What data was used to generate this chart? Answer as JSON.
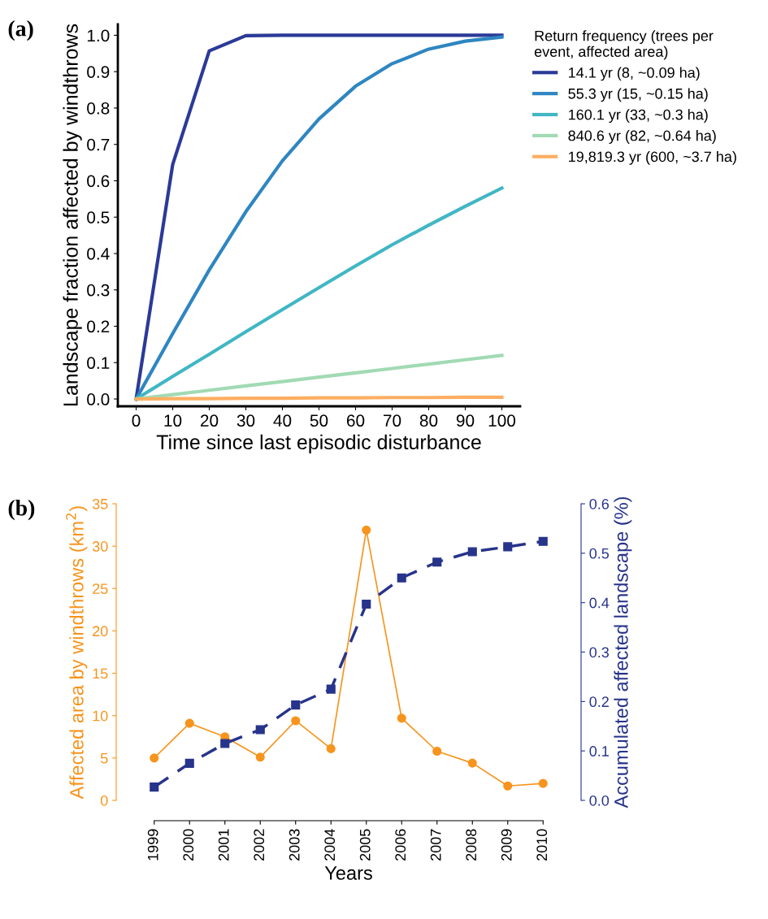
{
  "chart_data": [
    {
      "type": "line",
      "title": "(a)",
      "xlabel": "Time since last episodic disturbance",
      "ylabel": "Landscape fraction affected by windthrows",
      "legend_title": "Return frequency (trees per\nevent, affected area)",
      "legend": "right",
      "x": [
        0,
        10,
        20,
        30,
        40,
        50,
        60,
        70,
        80,
        90,
        100
      ],
      "xlim": [
        -5,
        105
      ],
      "xticks": [
        0,
        10,
        20,
        30,
        40,
        50,
        60,
        70,
        80,
        90,
        100
      ],
      "ylim": [
        -0.02,
        1.03
      ],
      "yticks": [
        {
          "value": 0,
          "label": "0.0"
        },
        0.1,
        0.2,
        0.3,
        0.4,
        0.5,
        0.6,
        0.7,
        0.8,
        0.9,
        {
          "value": 1,
          "label": "1.0"
        }
      ],
      "series": [
        {
          "name": "14.1 yr (8, ~0.09 ha)",
          "color": "#2b3a98",
          "values": [
            0,
            0.645,
            0.957,
            0.999,
            1,
            1,
            1,
            1,
            1,
            1,
            1
          ]
        },
        {
          "name": "55.3 yr (15, ~0.15 ha)",
          "color": "#2e86c1",
          "values": [
            0,
            0.18,
            0.355,
            0.515,
            0.655,
            0.77,
            0.86,
            0.922,
            0.962,
            0.984,
            0.995
          ]
        },
        {
          "name": "160.1 yr (33, ~0.3 ha)",
          "color": "#41b6c4",
          "values": [
            0,
            0.062,
            0.123,
            0.185,
            0.246,
            0.306,
            0.366,
            0.424,
            0.478,
            0.53,
            0.58
          ]
        },
        {
          "name": "840.6 yr (82, ~0.64 ha)",
          "color": "#a1dab4",
          "values": [
            0,
            0.012,
            0.024,
            0.036,
            0.048,
            0.06,
            0.072,
            0.084,
            0.096,
            0.108,
            0.12
          ]
        },
        {
          "name": "19,819.3 yr (600, ~3.7 ha)",
          "color": "#fdae61",
          "values": [
            0,
            0.001,
            0.001,
            0.002,
            0.002,
            0.003,
            0.003,
            0.004,
            0.004,
            0.005,
            0.005
          ]
        }
      ]
    },
    {
      "type": "line",
      "title": "(b)",
      "xlabel": "Years",
      "ylabel": "Affected area by windthrows (km$^{2}$)",
      "y2label": "Accumulated affected landscape (%)",
      "categories": [
        "1999",
        "2000",
        "2001",
        "2002",
        "2003",
        "2004",
        "2005",
        "2006",
        "2007",
        "2008",
        "2009",
        "2010"
      ],
      "ylim": [
        0,
        35
      ],
      "yticks": [
        0,
        5,
        10,
        15,
        20,
        25,
        30,
        35
      ],
      "y2lim": [
        0,
        0.6
      ],
      "y2ticks": [
        {
          "value": 0,
          "label": "0.0"
        },
        0.1,
        0.2,
        0.3,
        0.4,
        0.5,
        0.6
      ],
      "series": [
        {
          "color": "#f7941d",
          "marker": "circle",
          "line_style": "solid",
          "values": [
            5.0,
            9.1,
            7.5,
            5.1,
            9.4,
            6.1,
            31.9,
            9.7,
            5.8,
            4.4,
            1.7,
            2.0
          ]
        },
        {
          "color": "#27348b",
          "marker": "square",
          "line_style": "dashed",
          "axis": "y2",
          "values": [
            0.027,
            0.075,
            0.115,
            0.143,
            0.193,
            0.225,
            0.397,
            0.45,
            0.482,
            0.503,
            0.513,
            0.524
          ]
        }
      ]
    }
  ]
}
